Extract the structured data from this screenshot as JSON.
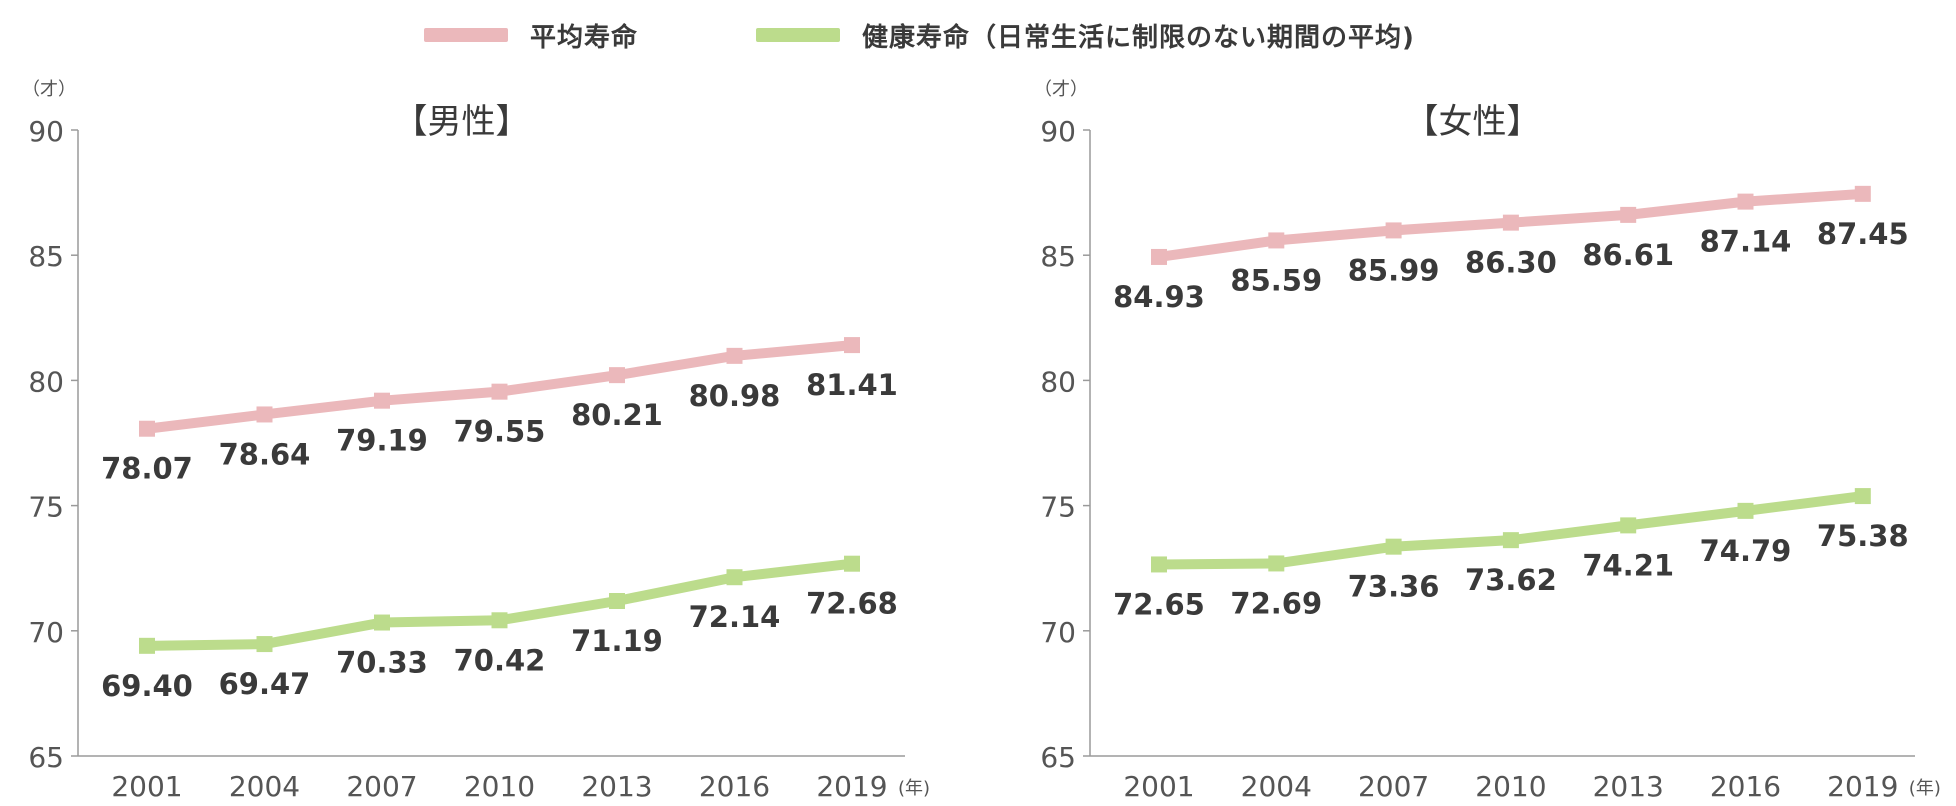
{
  "legend": {
    "life_expectancy": "平均寿命",
    "healthy_life": "健康寿命（日常生活に制限のない期間の平均)"
  },
  "colors": {
    "life_expectancy": "#ebb8bb",
    "healthy_life": "#bcdc8c",
    "axis": "#9a9a9a",
    "tick_text": "#555555",
    "label_text": "#3a3a3a"
  },
  "chart_data": [
    {
      "type": "line",
      "title": "【男性】",
      "ylabel": "（才）",
      "xlabel": "(年)",
      "x": [
        "2001",
        "2004",
        "2007",
        "2010",
        "2013",
        "2016",
        "2019"
      ],
      "ylim": [
        65,
        90
      ],
      "yticks": [
        65,
        70,
        75,
        80,
        85,
        90
      ],
      "grid": false,
      "series": [
        {
          "name": "平均寿命",
          "values": [
            78.07,
            78.64,
            79.19,
            79.55,
            80.21,
            80.98,
            81.41
          ],
          "labels": [
            "78.07",
            "78.64",
            "79.19",
            "79.55",
            "80.21",
            "80.98",
            "81.41"
          ]
        },
        {
          "name": "健康寿命（日常生活に制限のない期間の平均)",
          "values": [
            69.4,
            69.47,
            70.33,
            70.42,
            71.19,
            72.14,
            72.68
          ],
          "labels": [
            "69.40",
            "69.47",
            "70.33",
            "70.42",
            "71.19",
            "72.14",
            "72.68"
          ]
        }
      ]
    },
    {
      "type": "line",
      "title": "【女性】",
      "ylabel": "（才）",
      "xlabel": "(年)",
      "x": [
        "2001",
        "2004",
        "2007",
        "2010",
        "2013",
        "2016",
        "2019"
      ],
      "ylim": [
        65,
        90
      ],
      "yticks": [
        65,
        70,
        75,
        80,
        85,
        90
      ],
      "grid": false,
      "series": [
        {
          "name": "平均寿命",
          "values": [
            84.93,
            85.59,
            85.99,
            86.3,
            86.61,
            87.14,
            87.45
          ],
          "labels": [
            "84.93",
            "85.59",
            "85.99",
            "86.30",
            "86.61",
            "87.14",
            "87.45"
          ]
        },
        {
          "name": "健康寿命（日常生活に制限のない期間の平均)",
          "values": [
            72.65,
            72.69,
            73.36,
            73.62,
            74.21,
            74.79,
            75.38
          ],
          "labels": [
            "72.65",
            "72.69",
            "73.36",
            "73.62",
            "74.21",
            "74.79",
            "75.38"
          ]
        }
      ]
    }
  ]
}
